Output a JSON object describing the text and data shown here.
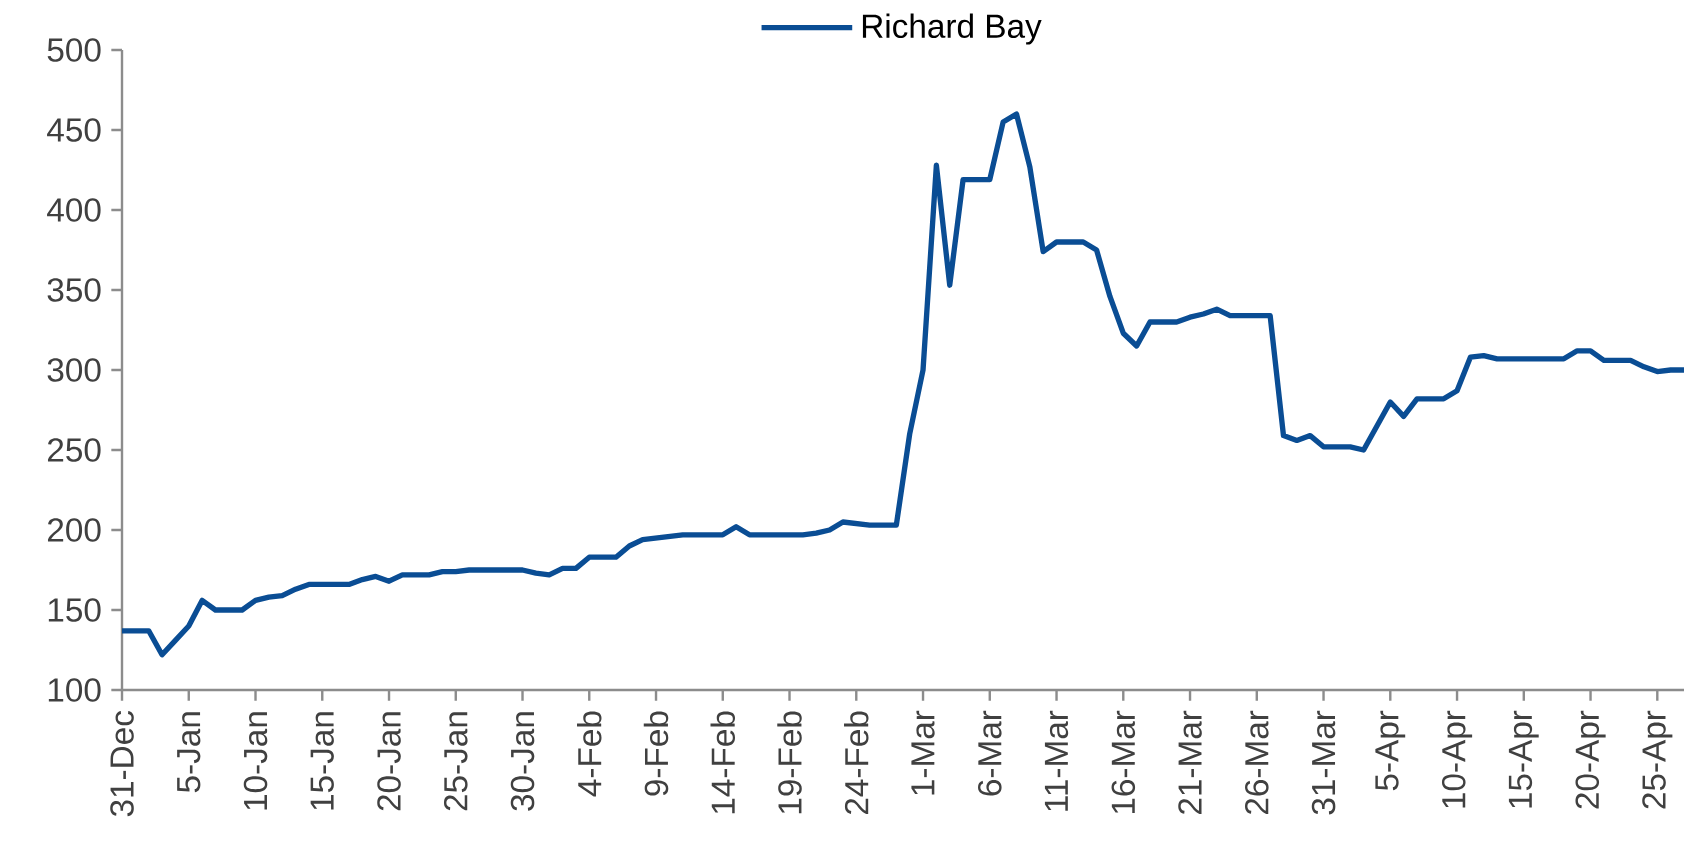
{
  "chart_data": {
    "type": "line",
    "categories": [
      "31-Dec",
      null,
      null,
      null,
      null,
      "5-Jan",
      null,
      null,
      null,
      null,
      "10-Jan",
      null,
      null,
      null,
      null,
      "15-Jan",
      null,
      null,
      null,
      null,
      "20-Jan",
      null,
      null,
      null,
      null,
      "25-Jan",
      null,
      null,
      null,
      null,
      "30-Jan",
      null,
      null,
      null,
      null,
      "4-Feb",
      null,
      null,
      null,
      null,
      "9-Feb",
      null,
      null,
      null,
      null,
      "14-Feb",
      null,
      null,
      null,
      null,
      "19-Feb",
      null,
      null,
      null,
      null,
      "24-Feb",
      null,
      null,
      null,
      null,
      "1-Mar",
      null,
      null,
      null,
      null,
      "6-Mar",
      null,
      null,
      null,
      null,
      "11-Mar",
      null,
      null,
      null,
      null,
      "16-Mar",
      null,
      null,
      null,
      null,
      "21-Mar",
      null,
      null,
      null,
      null,
      "26-Mar",
      null,
      null,
      null,
      null,
      "31-Mar",
      null,
      null,
      null,
      null,
      "5-Apr",
      null,
      null,
      null,
      null,
      "10-Apr",
      null,
      null,
      null,
      null,
      "15-Apr",
      null,
      null,
      null,
      null,
      "20-Apr",
      null,
      null,
      null,
      null,
      "25-Apr",
      null,
      null
    ],
    "series": [
      {
        "name": "Richard Bay",
        "color": "#0a4d94",
        "values": [
          137,
          137,
          137,
          122,
          131,
          140,
          156,
          150,
          150,
          150,
          156,
          158,
          159,
          163,
          166,
          166,
          166,
          166,
          169,
          171,
          168,
          172,
          172,
          172,
          174,
          174,
          175,
          175,
          175,
          175,
          175,
          173,
          172,
          176,
          176,
          183,
          183,
          183,
          190,
          194,
          195,
          196,
          197,
          197,
          197,
          197,
          202,
          197,
          197,
          197,
          197,
          197,
          198,
          200,
          205,
          204,
          203,
          203,
          203,
          260,
          300,
          428,
          353,
          419,
          419,
          419,
          455,
          460,
          427,
          374,
          380,
          380,
          380,
          375,
          346,
          323,
          315,
          330,
          330,
          330,
          333,
          335,
          338,
          334,
          334,
          334,
          334,
          259,
          256,
          259,
          252,
          252,
          252,
          250,
          265,
          280,
          271,
          282,
          282,
          282,
          287,
          308,
          309,
          307,
          307,
          307,
          307,
          307,
          307,
          312,
          312,
          306,
          306,
          306,
          302,
          299,
          300,
          300
        ]
      }
    ],
    "ylim": [
      100,
      500
    ],
    "yticks": [
      {
        "value": 100,
        "label": "100"
      },
      {
        "value": 150,
        "label": "150"
      },
      {
        "value": 200,
        "label": "200"
      },
      {
        "value": 250,
        "label": "250"
      },
      {
        "value": 300,
        "label": "300"
      },
      {
        "value": 350,
        "label": "350"
      },
      {
        "value": 400,
        "label": "400"
      },
      {
        "value": 450,
        "label": "450"
      },
      {
        "value": 500,
        "label": "500"
      }
    ],
    "legend": "top",
    "line_style": "solid"
  }
}
